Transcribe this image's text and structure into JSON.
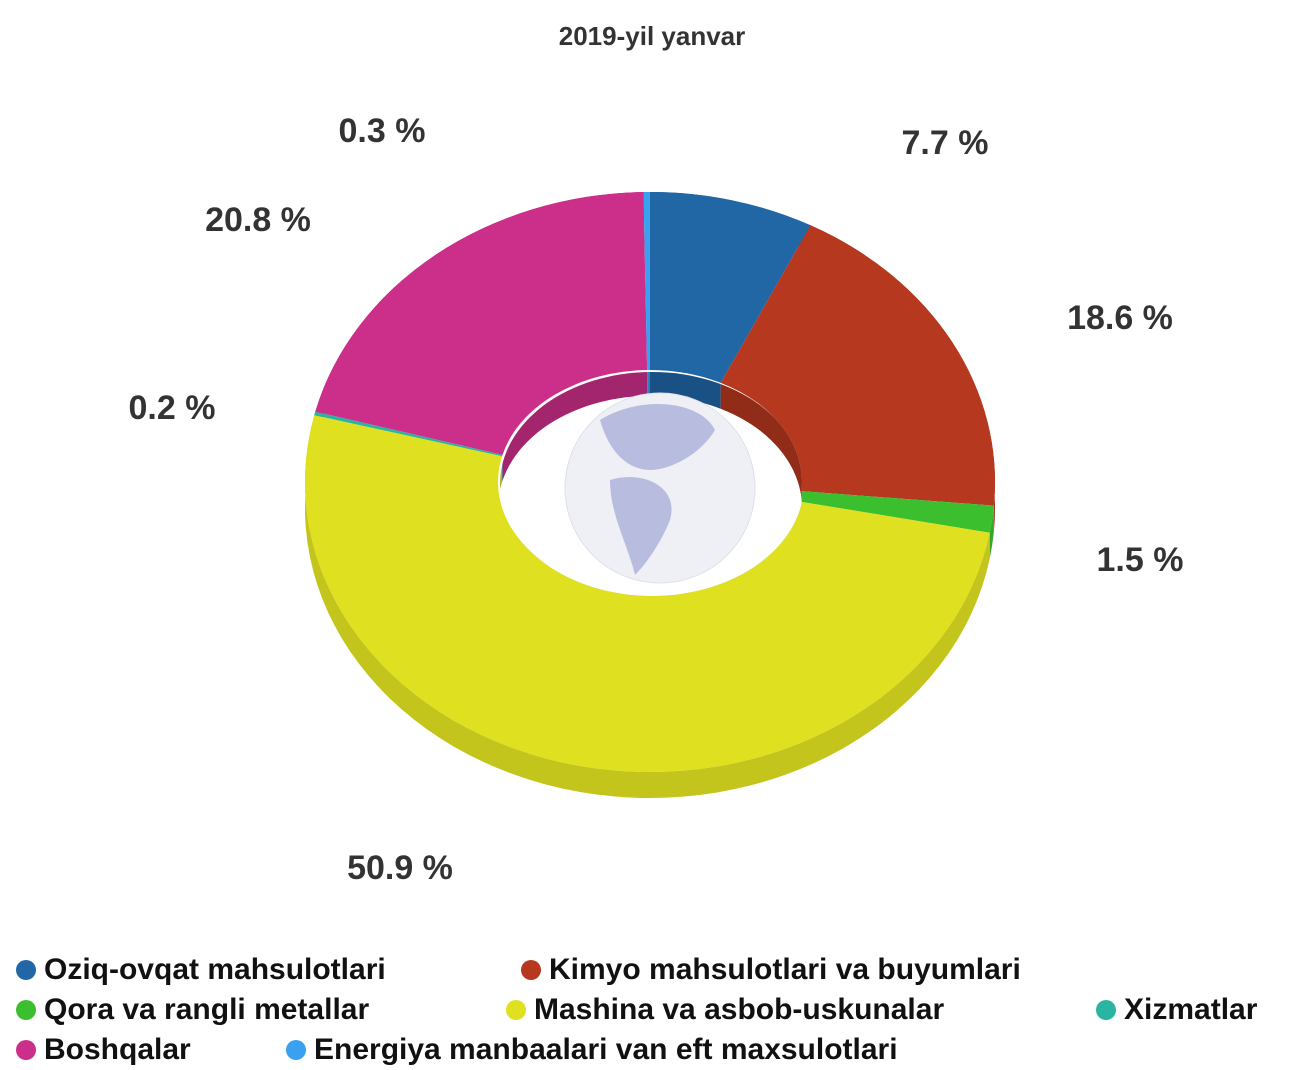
{
  "chart_data": {
    "type": "donut",
    "title": "2019-yil yanvar",
    "categories": [
      "Oziq-ovqat mahsulotlari",
      "Kimyo mahsulotlari va buyumlari",
      "Qora va rangli metallar",
      "Mashina va asbob-uskunalar",
      "Xizmatlar",
      "Boshqalar",
      "Energiya manbaalari van eft maxsulotlari"
    ],
    "values": [
      7.7,
      18.6,
      1.5,
      50.9,
      0.2,
      20.8,
      0.3
    ],
    "value_labels": [
      "7.7 %",
      "18.6 %",
      "1.5 %",
      "50.9 %",
      "0.2 %",
      "20.8 %",
      "0.3 %"
    ],
    "colors": [
      "#2166a5",
      "#b5381f",
      "#3cbf2e",
      "#dfe020",
      "#2ab5a0",
      "#cc2f8a",
      "#3aa0f0"
    ]
  }
}
